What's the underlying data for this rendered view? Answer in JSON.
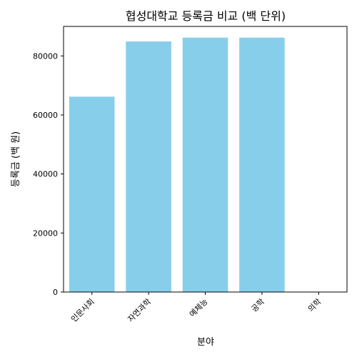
{
  "chart_data": {
    "type": "bar",
    "title": "협성대학교 등록금 비교 (백 단위)",
    "xlabel": "분야",
    "ylabel": "등록금 (백 원)",
    "categories": [
      "인문사회",
      "자연과학",
      "예체능",
      "공학",
      "의학"
    ],
    "values": [
      66200,
      84900,
      86200,
      86200,
      0
    ],
    "ylim": [
      0,
      90000
    ],
    "yticks": [
      0,
      20000,
      40000,
      60000,
      80000
    ],
    "bar_color": "#87ceeb",
    "grid": false
  }
}
